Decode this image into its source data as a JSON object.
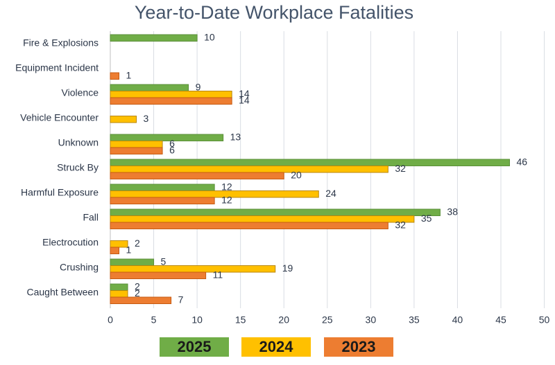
{
  "chart_data": {
    "type": "hbar",
    "title": "Year-to-Date Workplace Fatalities",
    "categories": [
      "Fire & Explosions",
      "Equipment Incident",
      "Violence",
      "Vehicle Encounter",
      "Unknown",
      "Struck By",
      "Harmful Exposure",
      "Fall",
      "Electrocution",
      "Crushing",
      "Caught Between"
    ],
    "series": [
      {
        "name": "2025",
        "color": "#70ad47",
        "values": [
          10,
          null,
          9,
          null,
          13,
          46,
          12,
          38,
          null,
          5,
          2
        ]
      },
      {
        "name": "2024",
        "color": "#ffc000",
        "values": [
          null,
          null,
          14,
          3,
          6,
          32,
          24,
          35,
          2,
          19,
          2
        ]
      },
      {
        "name": "2023",
        "color": "#ed7d31",
        "values": [
          null,
          1,
          14,
          null,
          6,
          20,
          12,
          32,
          1,
          11,
          7
        ]
      }
    ],
    "xlim": [
      0,
      50
    ],
    "xticks": [
      0,
      5,
      10,
      15,
      20,
      25,
      30,
      35,
      40,
      45,
      50
    ],
    "grid": true
  }
}
